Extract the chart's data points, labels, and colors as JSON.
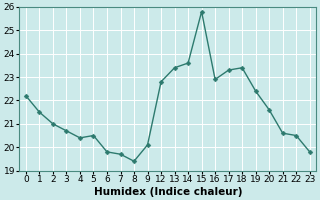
{
  "x_labels": [
    "0",
    "1",
    "2",
    "3",
    "4",
    "5",
    "6",
    "7",
    "8",
    "9",
    "12",
    "13",
    "14",
    "15",
    "16",
    "17",
    "18",
    "19",
    "20",
    "21",
    "22",
    "23"
  ],
  "y": [
    22.2,
    21.5,
    21.0,
    20.7,
    20.4,
    20.5,
    19.8,
    19.7,
    19.4,
    20.1,
    22.8,
    23.4,
    23.6,
    25.8,
    22.9,
    23.3,
    23.4,
    22.4,
    21.6,
    20.6,
    20.5,
    19.8
  ],
  "line_color": "#2d7a6e",
  "marker": "D",
  "marker_size": 2.5,
  "bg_color": "#cceaea",
  "grid_color": "#ffffff",
  "xlabel": "Humidex (Indice chaleur)",
  "ylim": [
    19,
    26
  ],
  "yticks": [
    19,
    20,
    21,
    22,
    23,
    24,
    25,
    26
  ],
  "label_fontsize": 7.5,
  "tick_fontsize": 6.5,
  "linewidth": 1.0
}
